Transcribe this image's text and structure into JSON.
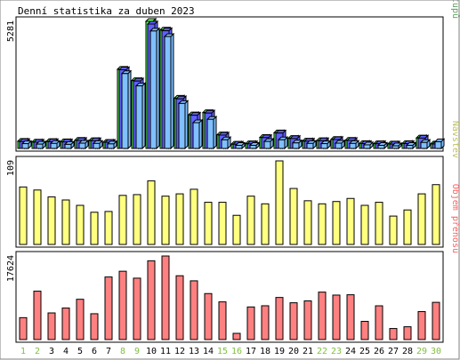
{
  "chart_data": {
    "type": "bar",
    "title": "Denní statistika za duben 2023",
    "categories": [
      "1",
      "2",
      "3",
      "4",
      "5",
      "6",
      "7",
      "8",
      "9",
      "10",
      "11",
      "12",
      "13",
      "14",
      "15",
      "16",
      "17",
      "18",
      "19",
      "20",
      "21",
      "22",
      "23",
      "24",
      "25",
      "26",
      "27",
      "28",
      "29",
      "30"
    ],
    "weekend_days": [
      "1",
      "2",
      "8",
      "9",
      "15",
      "16",
      "22",
      "23",
      "29",
      "30"
    ],
    "panels": [
      {
        "name": "traffic",
        "ymax_label": "5281",
        "ylim": [
          0,
          5281
        ],
        "legend": [
          {
            "text": "Stránek",
            "color": "#6060ff"
          },
          {
            "text": "/",
            "color": "#000000"
          },
          {
            "text": "Souborů",
            "color": "#6060ff"
          },
          {
            "text": "/",
            "color": "#000000"
          },
          {
            "text": "Přístupů",
            "color": "#60a060"
          }
        ],
        "series": [
          {
            "name": "Přístupů",
            "color": "#60ff60",
            "values": [
              300,
              270,
              290,
              280,
              340,
              330,
              260,
              3290,
              2820,
              5281,
              4920,
              2090,
              1400,
              1490,
              570,
              180,
              200,
              460,
              650,
              420,
              310,
              330,
              380,
              340,
              210,
              200,
              190,
              210,
              440,
              190
            ]
          },
          {
            "name": "Souborů",
            "color": "#6060ff",
            "values": [
              285,
              260,
              280,
              270,
              330,
              320,
              255,
              3270,
              2800,
              5170,
              4890,
              2060,
              1380,
              1470,
              555,
              175,
              190,
              450,
              640,
              410,
              300,
              320,
              370,
              330,
              200,
              195,
              180,
              200,
              430,
              185
            ]
          },
          {
            "name": "Stránek",
            "color": "#80c0ff",
            "values": [
              200,
              180,
              210,
              170,
              220,
              210,
              190,
              3110,
              2600,
              4880,
              4650,
              1870,
              1070,
              1210,
              360,
              130,
              130,
              290,
              360,
              230,
              210,
              200,
              220,
              210,
              150,
              130,
              110,
              130,
              250,
              280
            ]
          }
        ]
      },
      {
        "name": "visits",
        "ymax_label": "109",
        "ylim": [
          0,
          109
        ],
        "legend": [
          {
            "text": "Návštěv",
            "color": "#c0c060"
          }
        ],
        "series": [
          {
            "name": "Návštěv",
            "color": "#ffff80",
            "values": [
              75,
              71,
              62,
              58,
              51,
              42,
              43,
              64,
              65,
              83,
              63,
              66,
              72,
              55,
              55,
              38,
              63,
              53,
              109,
              73,
              57,
              53,
              56,
              60,
              51,
              55,
              37,
              45,
              66,
              78
            ]
          }
        ]
      },
      {
        "name": "kbytes",
        "ymax_label": "17624",
        "ylim": [
          0,
          17624
        ],
        "legend": [
          {
            "text": "Objem přenosu",
            "color": "#ff6060"
          }
        ],
        "series": [
          {
            "name": "Objem přenosu",
            "color": "#ff8080",
            "values": [
              4620,
              10210,
              5620,
              6650,
              8500,
              5450,
              13200,
              14410,
              12950,
              16620,
              17624,
              13460,
              12390,
              9700,
              7950,
              1310,
              6880,
              7130,
              8880,
              7760,
              8160,
              10010,
              9380,
              9450,
              3840,
              7120,
              2330,
              2700,
              5900,
              7850
            ]
          }
        ]
      }
    ]
  }
}
